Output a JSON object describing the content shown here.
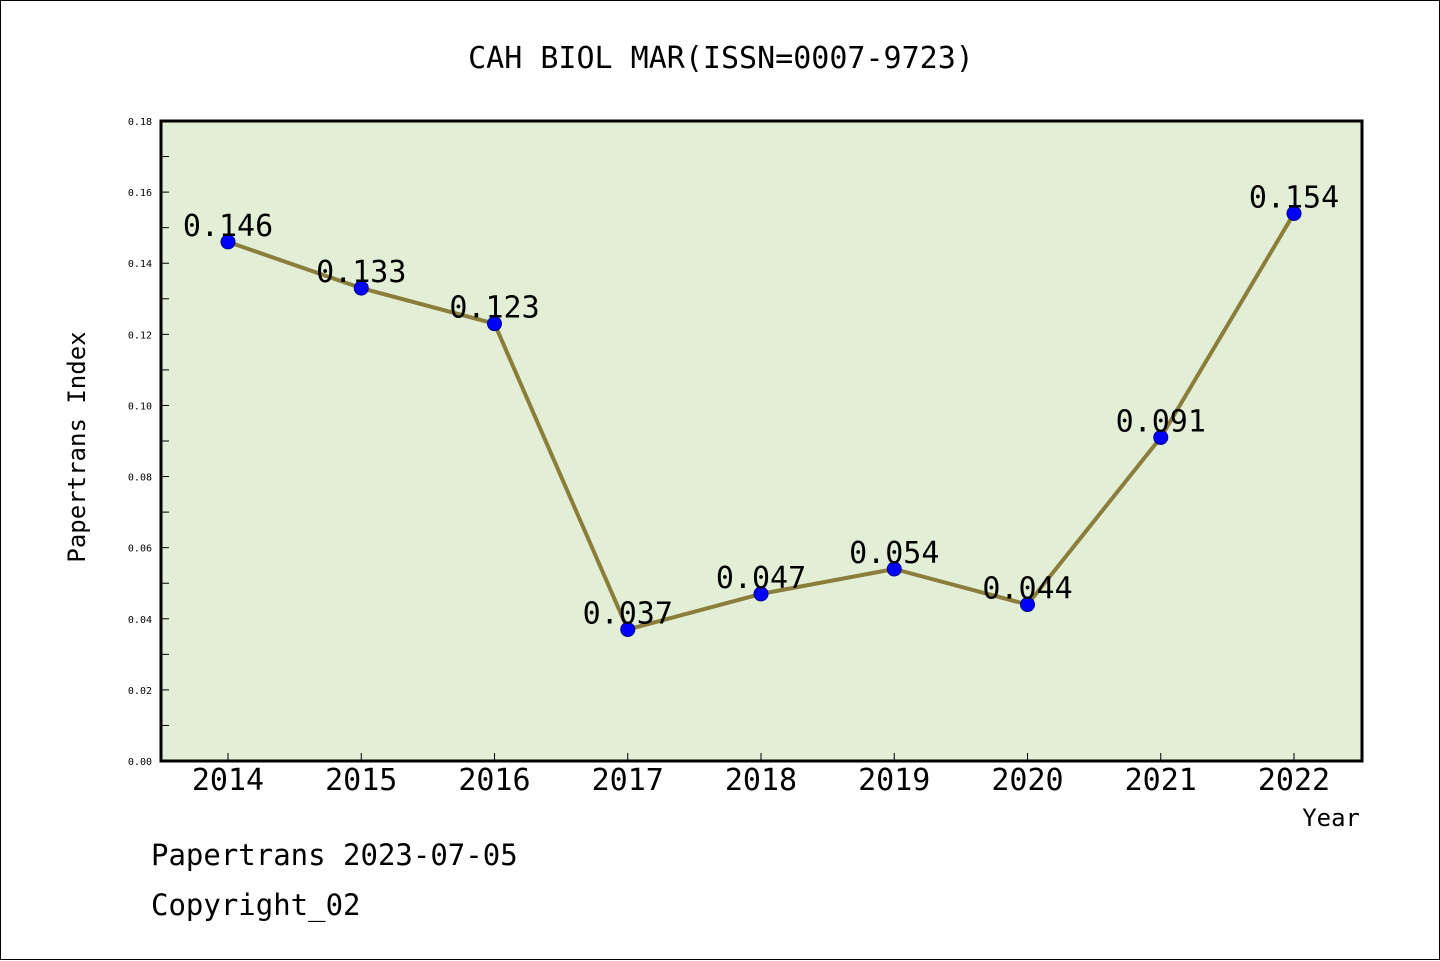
{
  "chart_data": {
    "type": "line",
    "title": "CAH BIOL MAR(ISSN=0007-9723)",
    "xlabel": "Year",
    "ylabel": "Papertrans Index",
    "categories": [
      "2014",
      "2015",
      "2016",
      "2017",
      "2018",
      "2019",
      "2020",
      "2021",
      "2022"
    ],
    "values": [
      0.146,
      0.133,
      0.123,
      0.037,
      0.047,
      0.054,
      0.044,
      0.091,
      0.154
    ],
    "data_labels": [
      "0.146",
      "0.133",
      "0.123",
      "0.037",
      "0.047",
      "0.054",
      "0.044",
      "0.091",
      "0.154"
    ],
    "ylim": [
      0,
      0.18
    ],
    "yticks": [
      "0.00",
      "0.02",
      "0.04",
      "0.06",
      "0.08",
      "0.10",
      "0.12",
      "0.14",
      "0.16",
      "0.18"
    ],
    "grid": false,
    "colors": {
      "plot_background": "#e2efd6",
      "line": "#8b7d3a",
      "marker": "#0000ff"
    }
  },
  "footer": {
    "line1": "Papertrans 2023-07-05",
    "line2": "Copyright_02"
  }
}
